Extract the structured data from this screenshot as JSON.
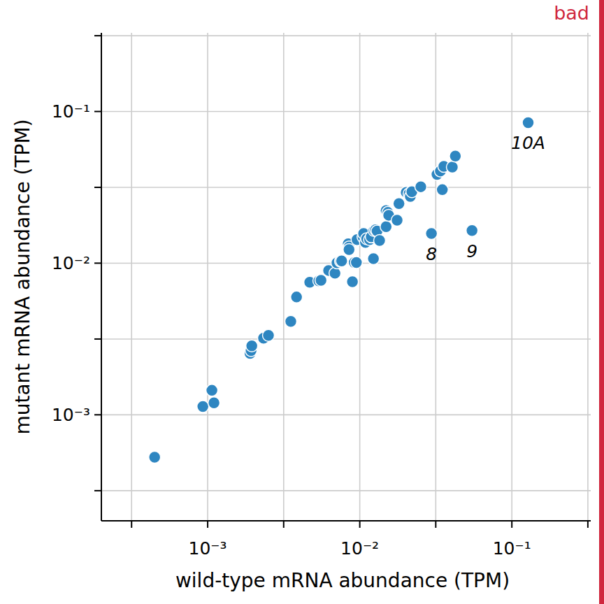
{
  "chart_data": {
    "type": "scatter",
    "badge": "bad",
    "x_label": "wild-type mRNA abundance (TPM)",
    "y_label": "mutant mRNA abundance (TPM)",
    "log": true,
    "grid": true,
    "color": "#2e86c1",
    "marker": "circle",
    "xlim": [
      0.0002,
      0.33
    ],
    "ylim": [
      0.0002,
      0.33
    ],
    "xticks": [
      {
        "value": 0.000316,
        "label": null
      },
      {
        "value": 0.001,
        "label": "10⁻³"
      },
      {
        "value": 0.00316,
        "label": null
      },
      {
        "value": 0.01,
        "label": "10⁻²"
      },
      {
        "value": 0.0316,
        "label": null
      },
      {
        "value": 0.1,
        "label": "10⁻¹"
      },
      {
        "value": 0.316,
        "label": null
      }
    ],
    "yticks": [
      {
        "value": 0.000316,
        "label": null
      },
      {
        "value": 0.001,
        "label": "10⁻³"
      },
      {
        "value": 0.00316,
        "label": null
      },
      {
        "value": 0.01,
        "label": "10⁻²"
      },
      {
        "value": 0.0316,
        "label": null
      },
      {
        "value": 0.1,
        "label": "10⁻¹"
      },
      {
        "value": 0.316,
        "label": null
      }
    ],
    "x": [
      0.000448,
      0.00093,
      0.001066,
      0.0011,
      0.0019,
      0.00193,
      0.00195,
      0.00233,
      0.00251,
      0.00352,
      0.00384,
      0.00469,
      0.00538,
      0.00556,
      0.00624,
      0.00687,
      0.00708,
      0.00747,
      0.0076,
      0.0084,
      0.0085,
      0.0085,
      0.00895,
      0.0092,
      0.0095,
      0.0096,
      0.0105,
      0.0106,
      0.0109,
      0.0111,
      0.0116,
      0.0119,
      0.0123,
      0.0124,
      0.0127,
      0.013,
      0.0135,
      0.0149,
      0.0149,
      0.0153,
      0.0155,
      0.0176,
      0.0181,
      0.0202,
      0.0211,
      0.0215,
      0.022,
      0.0252,
      0.0296,
      0.0322,
      0.0339,
      0.0349,
      0.0357,
      0.0406,
      0.0425,
      0.0547,
      0.128
    ],
    "y": [
      0.000525,
      0.001135,
      0.00145,
      0.0012,
      0.00254,
      0.00265,
      0.00285,
      0.0032,
      0.00334,
      0.00413,
      0.00598,
      0.00748,
      0.00764,
      0.0077,
      0.00895,
      0.00858,
      0.01005,
      0.0103,
      0.01035,
      0.0134,
      0.0128,
      0.0123,
      0.00755,
      0.0101,
      0.0101,
      0.0143,
      0.0149,
      0.0157,
      0.0137,
      0.0145,
      0.0143,
      0.0149,
      0.0107,
      0.0164,
      0.0166,
      0.0163,
      0.0141,
      0.0174,
      0.0222,
      0.0216,
      0.0207,
      0.0192,
      0.0247,
      0.0293,
      0.0287,
      0.0275,
      0.0296,
      0.0319,
      0.0157,
      0.0385,
      0.0405,
      0.0305,
      0.0435,
      0.043,
      0.0508,
      0.0164,
      0.0844
    ],
    "annotations": [
      {
        "text": "8",
        "x": 0.0296,
        "y": 0.0157
      },
      {
        "text": "9",
        "x": 0.0547,
        "y": 0.0164
      },
      {
        "text": "10A",
        "x": 0.128,
        "y": 0.0844
      }
    ]
  }
}
